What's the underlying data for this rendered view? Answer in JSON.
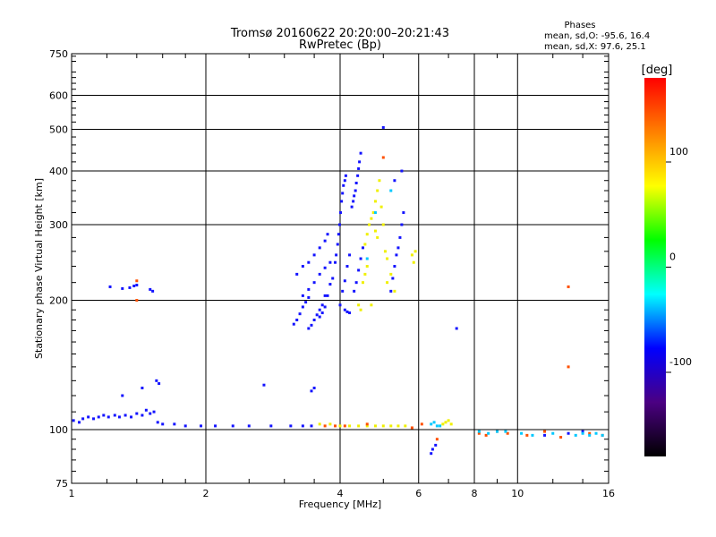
{
  "chart_data": {
    "type": "scatter",
    "title": "Tromsø 20160622 20:20:00–20:21:43",
    "subtitle": "RwPretec (Bp)",
    "phase_box": {
      "heading": "Phases",
      "line_o": "mean, sd,O: -95.6, 16.4",
      "line_x": "mean, sd,X:  97.6, 25.1"
    },
    "xlabel": "Frequency [MHz]",
    "ylabel": "Stationary phase Virtual Height [km]",
    "x_scale": "log",
    "y_scale": "log",
    "xlim": [
      1,
      16
    ],
    "ylim": [
      75,
      750
    ],
    "grid": true,
    "x_ticks": [
      {
        "v": 1,
        "label": "1"
      },
      {
        "v": 2,
        "label": "2"
      },
      {
        "v": 4,
        "label": "4"
      },
      {
        "v": 6,
        "label": "6"
      },
      {
        "v": 8,
        "label": "8"
      },
      {
        "v": 10,
        "label": "10"
      },
      {
        "v": 16,
        "label": "16"
      }
    ],
    "y_ticks": [
      {
        "v": 75,
        "label": "75"
      },
      {
        "v": 100,
        "label": "100"
      },
      {
        "v": 200,
        "label": "200"
      },
      {
        "v": 300,
        "label": "300"
      },
      {
        "v": 400,
        "label": "400"
      },
      {
        "v": 500,
        "label": "500"
      },
      {
        "v": 600,
        "label": "600"
      },
      {
        "v": 750,
        "label": "750"
      }
    ],
    "colorbar": {
      "label": "[deg]",
      "range": [
        -180,
        180
      ],
      "ticks": [
        {
          "v": 100,
          "label": "100"
        },
        {
          "v": 0,
          "label": "0"
        },
        {
          "v": -100,
          "label": "-100"
        }
      ],
      "stops": [
        "#000000",
        "#4b0082",
        "#0000ff",
        "#00ffff",
        "#00ff00",
        "#ffff00",
        "#ff8000",
        "#ff0000"
      ]
    },
    "series": [
      {
        "color": "#1414ff",
        "points": [
          [
            1.01,
            105
          ],
          [
            1.04,
            104
          ],
          [
            1.06,
            106
          ],
          [
            1.09,
            107
          ],
          [
            1.12,
            106
          ],
          [
            1.15,
            107
          ],
          [
            1.18,
            108
          ],
          [
            1.21,
            107
          ],
          [
            1.25,
            108
          ],
          [
            1.28,
            107
          ],
          [
            1.32,
            108
          ],
          [
            1.36,
            107
          ],
          [
            1.4,
            109
          ],
          [
            1.44,
            108
          ],
          [
            1.47,
            111
          ],
          [
            1.5,
            109
          ],
          [
            1.53,
            110
          ],
          [
            1.56,
            104
          ],
          [
            1.6,
            103
          ],
          [
            1.7,
            103
          ],
          [
            1.8,
            102
          ],
          [
            1.95,
            102
          ],
          [
            2.1,
            102
          ],
          [
            2.3,
            102
          ],
          [
            2.5,
            102
          ],
          [
            2.8,
            102
          ],
          [
            3.1,
            102
          ],
          [
            3.3,
            102
          ],
          [
            3.45,
            102
          ],
          [
            1.3,
            120
          ],
          [
            1.44,
            125
          ],
          [
            1.55,
            130
          ],
          [
            1.57,
            128
          ],
          [
            2.7,
            127
          ],
          [
            3.45,
            123
          ],
          [
            3.5,
            125
          ],
          [
            1.22,
            215
          ],
          [
            1.3,
            213
          ],
          [
            1.35,
            214
          ],
          [
            1.38,
            216
          ],
          [
            1.4,
            217
          ],
          [
            1.5,
            212
          ],
          [
            1.52,
            210
          ],
          [
            3.15,
            176
          ],
          [
            3.2,
            180
          ],
          [
            3.25,
            186
          ],
          [
            3.3,
            193
          ],
          [
            3.35,
            198
          ],
          [
            3.4,
            203
          ],
          [
            3.2,
            230
          ],
          [
            3.3,
            240
          ],
          [
            3.4,
            245
          ],
          [
            3.5,
            255
          ],
          [
            3.6,
            265
          ],
          [
            3.7,
            275
          ],
          [
            3.75,
            285
          ],
          [
            3.4,
            172
          ],
          [
            3.45,
            175
          ],
          [
            3.5,
            180
          ],
          [
            3.55,
            185
          ],
          [
            3.6,
            190
          ],
          [
            3.65,
            195
          ],
          [
            3.7,
            205
          ],
          [
            3.3,
            205
          ],
          [
            3.4,
            212
          ],
          [
            3.5,
            220
          ],
          [
            3.6,
            230
          ],
          [
            3.7,
            238
          ],
          [
            3.8,
            245
          ],
          [
            3.6,
            183
          ],
          [
            3.65,
            187
          ],
          [
            3.7,
            193
          ],
          [
            3.75,
            205
          ],
          [
            3.8,
            218
          ],
          [
            3.85,
            225
          ],
          [
            3.9,
            245
          ],
          [
            3.92,
            255
          ],
          [
            3.95,
            270
          ],
          [
            3.97,
            285
          ],
          [
            3.99,
            300
          ],
          [
            4.01,
            320
          ],
          [
            4.03,
            340
          ],
          [
            4.05,
            355
          ],
          [
            4.07,
            370
          ],
          [
            4.1,
            380
          ],
          [
            4.12,
            390
          ],
          [
            4.0,
            195
          ],
          [
            4.05,
            210
          ],
          [
            4.1,
            222
          ],
          [
            4.15,
            240
          ],
          [
            4.2,
            255
          ],
          [
            4.25,
            330
          ],
          [
            4.28,
            340
          ],
          [
            4.3,
            350
          ],
          [
            4.33,
            360
          ],
          [
            4.35,
            375
          ],
          [
            4.38,
            390
          ],
          [
            4.4,
            405
          ],
          [
            4.42,
            420
          ],
          [
            4.45,
            440
          ],
          [
            4.3,
            210
          ],
          [
            4.35,
            220
          ],
          [
            4.4,
            235
          ],
          [
            4.45,
            250
          ],
          [
            4.5,
            265
          ],
          [
            5.2,
            210
          ],
          [
            5.25,
            225
          ],
          [
            5.3,
            240
          ],
          [
            5.35,
            255
          ],
          [
            5.4,
            265
          ],
          [
            5.45,
            280
          ],
          [
            5.5,
            300
          ],
          [
            5.55,
            320
          ],
          [
            5.0,
            505
          ],
          [
            5.3,
            380
          ],
          [
            5.5,
            400
          ],
          [
            4.1,
            190
          ],
          [
            4.15,
            188
          ],
          [
            4.2,
            187
          ],
          [
            6.4,
            88
          ],
          [
            6.45,
            90
          ],
          [
            6.55,
            92
          ],
          [
            7.3,
            172
          ],
          [
            13.0,
            98
          ],
          [
            14.0,
            99
          ],
          [
            11.5,
            97
          ]
        ]
      },
      {
        "color": "#f0f000",
        "points": [
          [
            4.55,
            270
          ],
          [
            4.6,
            285
          ],
          [
            4.65,
            300
          ],
          [
            4.7,
            310
          ],
          [
            4.75,
            320
          ],
          [
            4.8,
            290
          ],
          [
            4.85,
            280
          ],
          [
            4.5,
            220
          ],
          [
            4.55,
            230
          ],
          [
            4.6,
            240
          ],
          [
            4.8,
            340
          ],
          [
            4.85,
            360
          ],
          [
            4.9,
            380
          ],
          [
            4.95,
            330
          ],
          [
            5.0,
            300
          ],
          [
            5.05,
            260
          ],
          [
            5.1,
            250
          ],
          [
            5.2,
            230
          ],
          [
            5.3,
            210
          ],
          [
            5.1,
            220
          ],
          [
            4.7,
            195
          ],
          [
            4.4,
            195
          ],
          [
            4.45,
            190
          ],
          [
            5.8,
            255
          ],
          [
            5.85,
            245
          ],
          [
            5.9,
            260
          ],
          [
            4.0,
            102
          ],
          [
            4.2,
            102
          ],
          [
            4.4,
            102
          ],
          [
            4.6,
            102
          ],
          [
            4.8,
            102
          ],
          [
            5.0,
            102
          ],
          [
            5.2,
            102
          ],
          [
            5.4,
            102
          ],
          [
            5.6,
            102
          ],
          [
            6.8,
            103
          ],
          [
            6.9,
            104
          ],
          [
            7.0,
            105
          ],
          [
            7.1,
            103
          ],
          [
            3.6,
            103
          ],
          [
            3.8,
            103
          ]
        ]
      },
      {
        "color": "#ff5000",
        "points": [
          [
            1.4,
            200
          ],
          [
            1.4,
            222
          ],
          [
            5.0,
            430
          ],
          [
            4.6,
            103
          ],
          [
            3.7,
            102
          ],
          [
            3.9,
            102
          ],
          [
            4.1,
            102
          ],
          [
            5.8,
            101
          ],
          [
            6.6,
            95
          ],
          [
            8.2,
            98
          ],
          [
            8.5,
            97
          ],
          [
            9.0,
            99
          ],
          [
            9.5,
            98
          ],
          [
            10.5,
            97
          ],
          [
            11.5,
            99
          ],
          [
            12.5,
            96
          ],
          [
            13.0,
            215
          ],
          [
            13.0,
            140
          ],
          [
            14.5,
            98
          ],
          [
            15.5,
            97
          ],
          [
            6.1,
            103
          ]
        ]
      },
      {
        "color": "#00c8ff",
        "points": [
          [
            6.4,
            103
          ],
          [
            6.5,
            104
          ],
          [
            6.6,
            102
          ],
          [
            6.7,
            102
          ],
          [
            9.0,
            99
          ],
          [
            10.2,
            98
          ],
          [
            10.8,
            97
          ],
          [
            12.0,
            98
          ],
          [
            13.5,
            97
          ],
          [
            14.0,
            98
          ],
          [
            14.5,
            97
          ],
          [
            15.0,
            98
          ],
          [
            15.5,
            97
          ],
          [
            8.2,
            99
          ],
          [
            4.8,
            320
          ],
          [
            4.6,
            250
          ],
          [
            5.2,
            360
          ],
          [
            8.6,
            98
          ],
          [
            9.4,
            99
          ]
        ]
      }
    ]
  }
}
